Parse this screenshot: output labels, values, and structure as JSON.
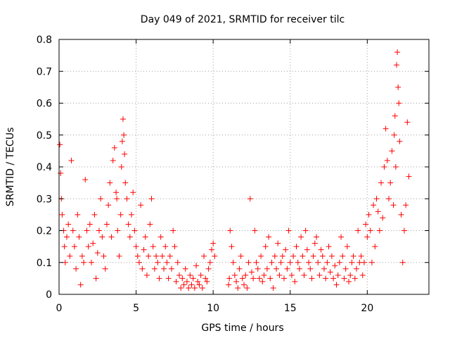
{
  "chart_data": {
    "type": "scatter",
    "title": "Day 049 of 2021, SRMTID for receiver tilc",
    "xlabel": "GPS time / hours",
    "ylabel": "SRMTID / TECUs",
    "xlim": [
      0,
      24
    ],
    "ylim": [
      0,
      0.8
    ],
    "xticks": [
      0,
      5,
      10,
      15,
      20
    ],
    "yticks": [
      0,
      0.1,
      0.2,
      0.3,
      0.4,
      0.5,
      0.6,
      0.7,
      0.8
    ],
    "xtick_labels": [
      "0",
      "5",
      "10",
      "15",
      "20"
    ],
    "ytick_labels": [
      "0",
      "0.1",
      "0.2",
      "0.3",
      "0.4",
      "0.5",
      "0.6",
      "0.7",
      "0.8"
    ],
    "grid": true,
    "marker": "+",
    "color": "#ff0000",
    "series": [
      {
        "name": "SRMTID",
        "x": [
          0.05,
          0.1,
          0.15,
          0.2,
          0.3,
          0.35,
          0.4,
          0.5,
          0.6,
          0.7,
          0.8,
          0.9,
          1.0,
          1.1,
          1.2,
          1.3,
          1.4,
          1.5,
          1.6,
          1.7,
          1.8,
          1.9,
          2.0,
          2.1,
          2.2,
          2.3,
          2.4,
          2.5,
          2.6,
          2.7,
          2.8,
          2.9,
          3.0,
          3.1,
          3.2,
          3.3,
          3.4,
          3.5,
          3.6,
          3.7,
          3.75,
          3.8,
          3.9,
          4.0,
          4.05,
          4.1,
          4.15,
          4.2,
          4.25,
          4.3,
          4.4,
          4.5,
          4.6,
          4.7,
          4.8,
          4.9,
          5.0,
          5.1,
          5.2,
          5.3,
          5.4,
          5.5,
          5.6,
          5.7,
          5.8,
          5.9,
          6.0,
          6.1,
          6.2,
          6.3,
          6.4,
          6.5,
          6.6,
          6.7,
          6.8,
          6.9,
          7.0,
          7.1,
          7.2,
          7.3,
          7.4,
          7.5,
          7.6,
          7.7,
          7.8,
          7.9,
          8.0,
          8.1,
          8.2,
          8.3,
          8.4,
          8.5,
          8.6,
          8.7,
          8.8,
          8.9,
          9.0,
          9.1,
          9.2,
          9.3,
          9.4,
          9.5,
          9.6,
          9.7,
          9.8,
          9.9,
          10.0,
          10.1,
          11.0,
          11.05,
          11.1,
          11.2,
          11.3,
          11.4,
          11.5,
          11.6,
          11.7,
          11.8,
          11.9,
          12.0,
          12.1,
          12.2,
          12.3,
          12.4,
          12.5,
          12.6,
          12.7,
          12.8,
          12.9,
          13.0,
          13.1,
          13.2,
          13.3,
          13.4,
          13.5,
          13.6,
          13.7,
          13.8,
          13.9,
          14.0,
          14.1,
          14.2,
          14.3,
          14.4,
          14.5,
          14.6,
          14.7,
          14.8,
          14.9,
          15.0,
          15.1,
          15.2,
          15.3,
          15.4,
          15.5,
          15.6,
          15.7,
          15.8,
          15.9,
          16.0,
          16.1,
          16.2,
          16.3,
          16.4,
          16.5,
          16.6,
          16.7,
          16.8,
          16.9,
          17.0,
          17.1,
          17.2,
          17.3,
          17.4,
          17.5,
          17.6,
          17.7,
          17.8,
          17.9,
          18.0,
          18.1,
          18.2,
          18.3,
          18.4,
          18.5,
          18.6,
          18.7,
          18.8,
          18.9,
          19.0,
          19.1,
          19.2,
          19.3,
          19.4,
          19.5,
          19.6,
          19.7,
          19.8,
          19.9,
          20.0,
          20.1,
          20.2,
          20.3,
          20.4,
          20.5,
          20.6,
          20.7,
          20.8,
          20.9,
          21.0,
          21.1,
          21.2,
          21.3,
          21.4,
          21.5,
          21.6,
          21.7,
          21.75,
          21.8,
          21.85,
          21.9,
          21.95,
          22.0,
          22.05,
          22.1,
          22.2,
          22.3,
          22.4,
          22.5,
          22.6,
          22.7
        ],
        "y": [
          0.47,
          0.38,
          0.3,
          0.25,
          0.2,
          0.15,
          0.1,
          0.18,
          0.22,
          0.12,
          0.42,
          0.2,
          0.15,
          0.08,
          0.25,
          0.18,
          0.03,
          0.12,
          0.1,
          0.36,
          0.2,
          0.15,
          0.22,
          0.1,
          0.16,
          0.25,
          0.05,
          0.13,
          0.2,
          0.3,
          0.18,
          0.12,
          0.08,
          0.22,
          0.28,
          0.35,
          0.18,
          0.42,
          0.46,
          0.32,
          0.3,
          0.2,
          0.12,
          0.25,
          0.4,
          0.48,
          0.55,
          0.5,
          0.44,
          0.35,
          0.3,
          0.22,
          0.18,
          0.25,
          0.32,
          0.2,
          0.15,
          0.12,
          0.1,
          0.28,
          0.08,
          0.14,
          0.18,
          0.06,
          0.12,
          0.22,
          0.3,
          0.15,
          0.08,
          0.12,
          0.1,
          0.05,
          0.18,
          0.12,
          0.08,
          0.15,
          0.1,
          0.05,
          0.12,
          0.08,
          0.2,
          0.15,
          0.04,
          0.1,
          0.06,
          0.02,
          0.05,
          0.03,
          0.08,
          0.04,
          0.02,
          0.06,
          0.03,
          0.05,
          0.02,
          0.09,
          0.04,
          0.03,
          0.06,
          0.02,
          0.12,
          0.05,
          0.04,
          0.08,
          0.1,
          0.14,
          0.16,
          0.12,
          0.03,
          0.05,
          0.2,
          0.15,
          0.1,
          0.06,
          0.04,
          0.02,
          0.08,
          0.12,
          0.05,
          0.03,
          0.06,
          0.02,
          0.1,
          0.3,
          0.07,
          0.05,
          0.2,
          0.1,
          0.08,
          0.05,
          0.12,
          0.04,
          0.06,
          0.15,
          0.08,
          0.18,
          0.05,
          0.1,
          0.02,
          0.12,
          0.08,
          0.16,
          0.06,
          0.1,
          0.12,
          0.05,
          0.14,
          0.08,
          0.2,
          0.1,
          0.06,
          0.12,
          0.04,
          0.15,
          0.1,
          0.08,
          0.18,
          0.12,
          0.06,
          0.2,
          0.14,
          0.1,
          0.08,
          0.05,
          0.12,
          0.16,
          0.18,
          0.1,
          0.06,
          0.14,
          0.12,
          0.08,
          0.05,
          0.1,
          0.15,
          0.07,
          0.12,
          0.05,
          0.09,
          0.03,
          0.06,
          0.1,
          0.18,
          0.12,
          0.05,
          0.08,
          0.15,
          0.04,
          0.06,
          0.1,
          0.12,
          0.05,
          0.08,
          0.2,
          0.1,
          0.12,
          0.06,
          0.1,
          0.22,
          0.18,
          0.25,
          0.2,
          0.1,
          0.28,
          0.15,
          0.3,
          0.26,
          0.2,
          0.35,
          0.24,
          0.4,
          0.52,
          0.42,
          0.3,
          0.35,
          0.45,
          0.28,
          0.5,
          0.56,
          0.4,
          0.72,
          0.76,
          0.65,
          0.6,
          0.48,
          0.25,
          0.1,
          0.2,
          0.28,
          0.54,
          0.37
        ]
      }
    ]
  }
}
